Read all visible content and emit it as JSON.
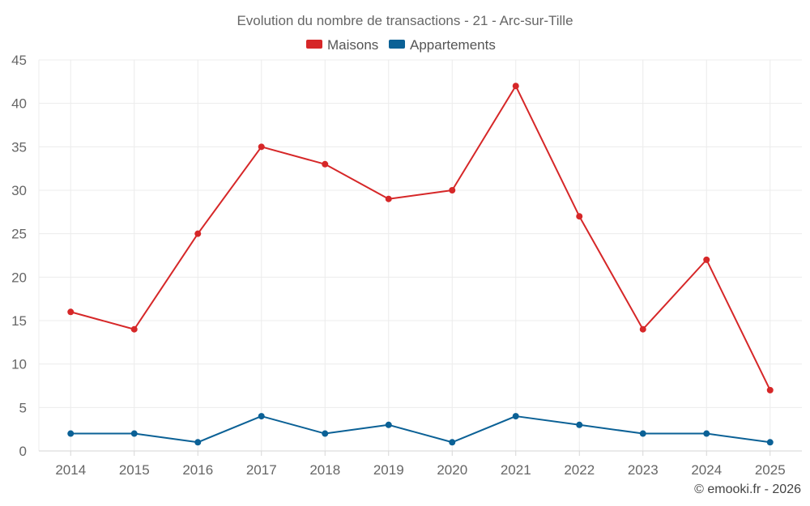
{
  "chart_data": {
    "type": "line",
    "title": "Evolution du nombre de transactions - 21 - Arc-sur-Tille",
    "categories": [
      "2014",
      "2015",
      "2016",
      "2017",
      "2018",
      "2019",
      "2020",
      "2021",
      "2022",
      "2023",
      "2024",
      "2025"
    ],
    "series": [
      {
        "name": "Maisons",
        "color": "#d62728",
        "values": [
          16,
          14,
          25,
          35,
          33,
          29,
          30,
          42,
          27,
          14,
          22,
          7
        ]
      },
      {
        "name": "Appartements",
        "color": "#0b6196",
        "values": [
          2,
          2,
          1,
          4,
          2,
          3,
          1,
          4,
          3,
          2,
          2,
          1
        ]
      }
    ],
    "ylim": [
      0,
      45
    ],
    "yticks": [
      0,
      5,
      10,
      15,
      20,
      25,
      30,
      35,
      40,
      45
    ],
    "grid": true,
    "legend": "top-center",
    "xlabel": "",
    "ylabel": ""
  },
  "credit": "© emooki.fr - 2026"
}
